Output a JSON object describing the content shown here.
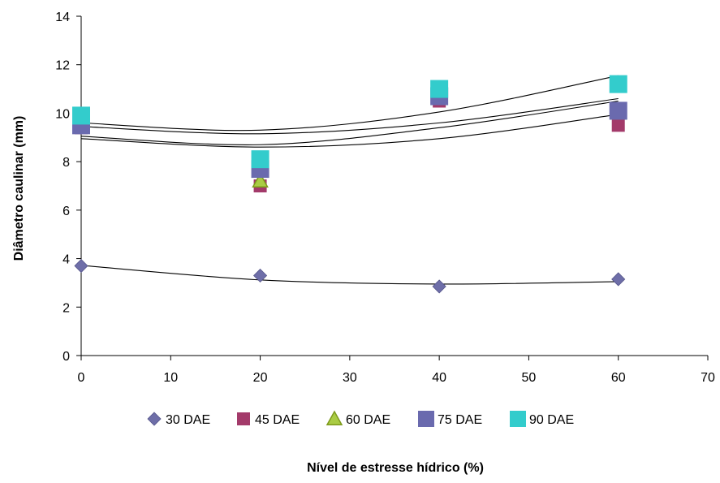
{
  "chart_data": {
    "type": "scatter",
    "title": "",
    "xlabel": "Nível de estresse hídrico (%)",
    "ylabel": "Diâmetro caulinar (mm)",
    "xlim": [
      0,
      70
    ],
    "ylim": [
      0,
      14
    ],
    "xticks": [
      "0",
      "10",
      "20",
      "30",
      "40",
      "50",
      "60",
      "70"
    ],
    "yticks": [
      "0",
      "2",
      "4",
      "6",
      "8",
      "10",
      "12",
      "14"
    ],
    "grid": false,
    "legend_position": "bottom",
    "series": [
      {
        "name": "30 DAE",
        "marker": "diamond",
        "color": "#6E6EA8",
        "x": [
          0,
          20,
          40,
          60
        ],
        "y": [
          3.7,
          3.3,
          2.85,
          3.15
        ],
        "trend": [
          3.72,
          3.12,
          2.95,
          3.05
        ]
      },
      {
        "name": "45 DAE",
        "marker": "square-small",
        "color": "#A33A6A",
        "x": [
          0,
          20,
          40,
          60
        ],
        "y": [
          9.4,
          7.0,
          10.5,
          9.5
        ],
        "trend": [
          8.95,
          8.6,
          8.95,
          9.95
        ]
      },
      {
        "name": "60 DAE",
        "marker": "triangle",
        "color": "#AACC44",
        "x": [
          0,
          20,
          40,
          60
        ],
        "y": [
          9.5,
          7.2,
          10.7,
          10.0
        ],
        "trend": [
          9.05,
          8.7,
          9.4,
          10.5
        ]
      },
      {
        "name": "75 DAE",
        "marker": "square",
        "color": "#6A6AAE",
        "x": [
          0,
          20,
          40,
          60
        ],
        "y": [
          9.5,
          7.7,
          10.7,
          10.1
        ],
        "trend": [
          9.45,
          9.15,
          9.6,
          10.6
        ]
      },
      {
        "name": "90 DAE",
        "marker": "square",
        "color": "#33CCCC",
        "x": [
          0,
          20,
          40,
          60
        ],
        "y": [
          9.9,
          8.1,
          11.0,
          11.2
        ],
        "trend": [
          9.6,
          9.3,
          10.05,
          11.55
        ]
      }
    ]
  }
}
